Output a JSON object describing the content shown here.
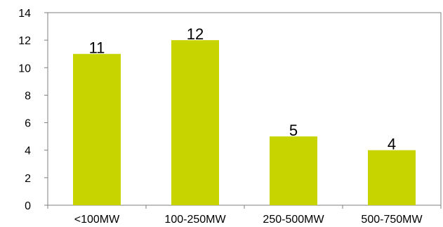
{
  "chart_data": {
    "type": "bar",
    "categories": [
      "<100MW",
      "100-250MW",
      "250-500MW",
      "500-750MW"
    ],
    "values": [
      11,
      12,
      5,
      4
    ],
    "data_labels": [
      "11",
      "12",
      "5",
      "4"
    ],
    "ylim": [
      0,
      14
    ],
    "yticks": [
      0,
      2,
      4,
      6,
      8,
      10,
      12,
      14
    ],
    "ytick_labels": [
      "0",
      "2",
      "4",
      "6",
      "8",
      "10",
      "12",
      "14"
    ],
    "grid": false,
    "legend": "none",
    "bar_color": "#c8d400",
    "axis_color": "#7f7f7f",
    "frame_color": "#7f7f7f",
    "title": "",
    "xlabel": "",
    "ylabel": ""
  }
}
